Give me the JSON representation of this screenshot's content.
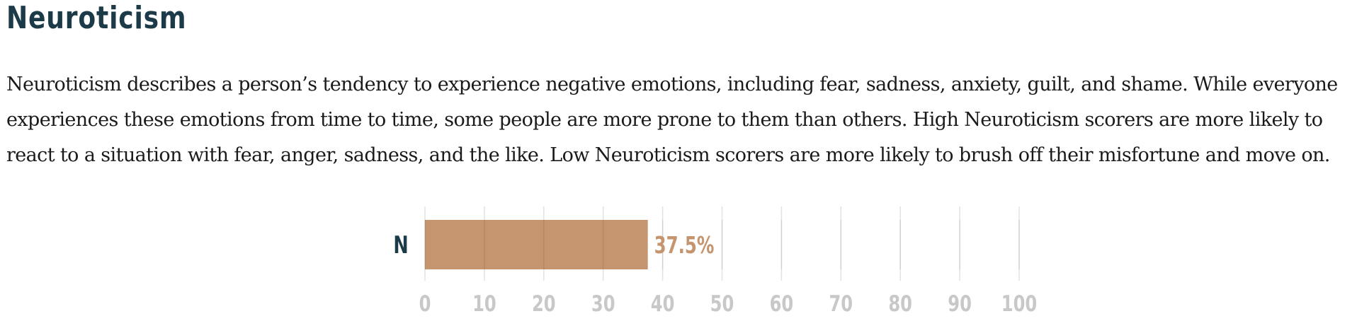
{
  "section": {
    "title": "Neuroticism",
    "description": "Neuroticism describes a person’s tendency to experience negative emotions, including fear, sadness, anxiety, guilt, and shame. While everyone experiences these emotions from time to time, some people are more prone to them than others. High Neuroticism scorers are more likely to react to a situation with fear, anger, sadness, and the like. Low Neuroticism scorers are more likely to brush off their misfortune and move on."
  },
  "chart_data": {
    "type": "bar",
    "orientation": "horizontal",
    "categories": [
      "N"
    ],
    "values": [
      37.5
    ],
    "value_labels": [
      "37.5%"
    ],
    "xlim": [
      0,
      100
    ],
    "x_ticks": [
      "0",
      "10",
      "20",
      "30",
      "40",
      "50",
      "60",
      "70",
      "80",
      "90",
      "100"
    ],
    "grid": true,
    "colors": {
      "bar": "#c4956e",
      "value_label": "#c4956e",
      "category_label": "#1c3a47",
      "tick_label": "#c8c8c8",
      "grid": "#e2e2e2"
    }
  }
}
